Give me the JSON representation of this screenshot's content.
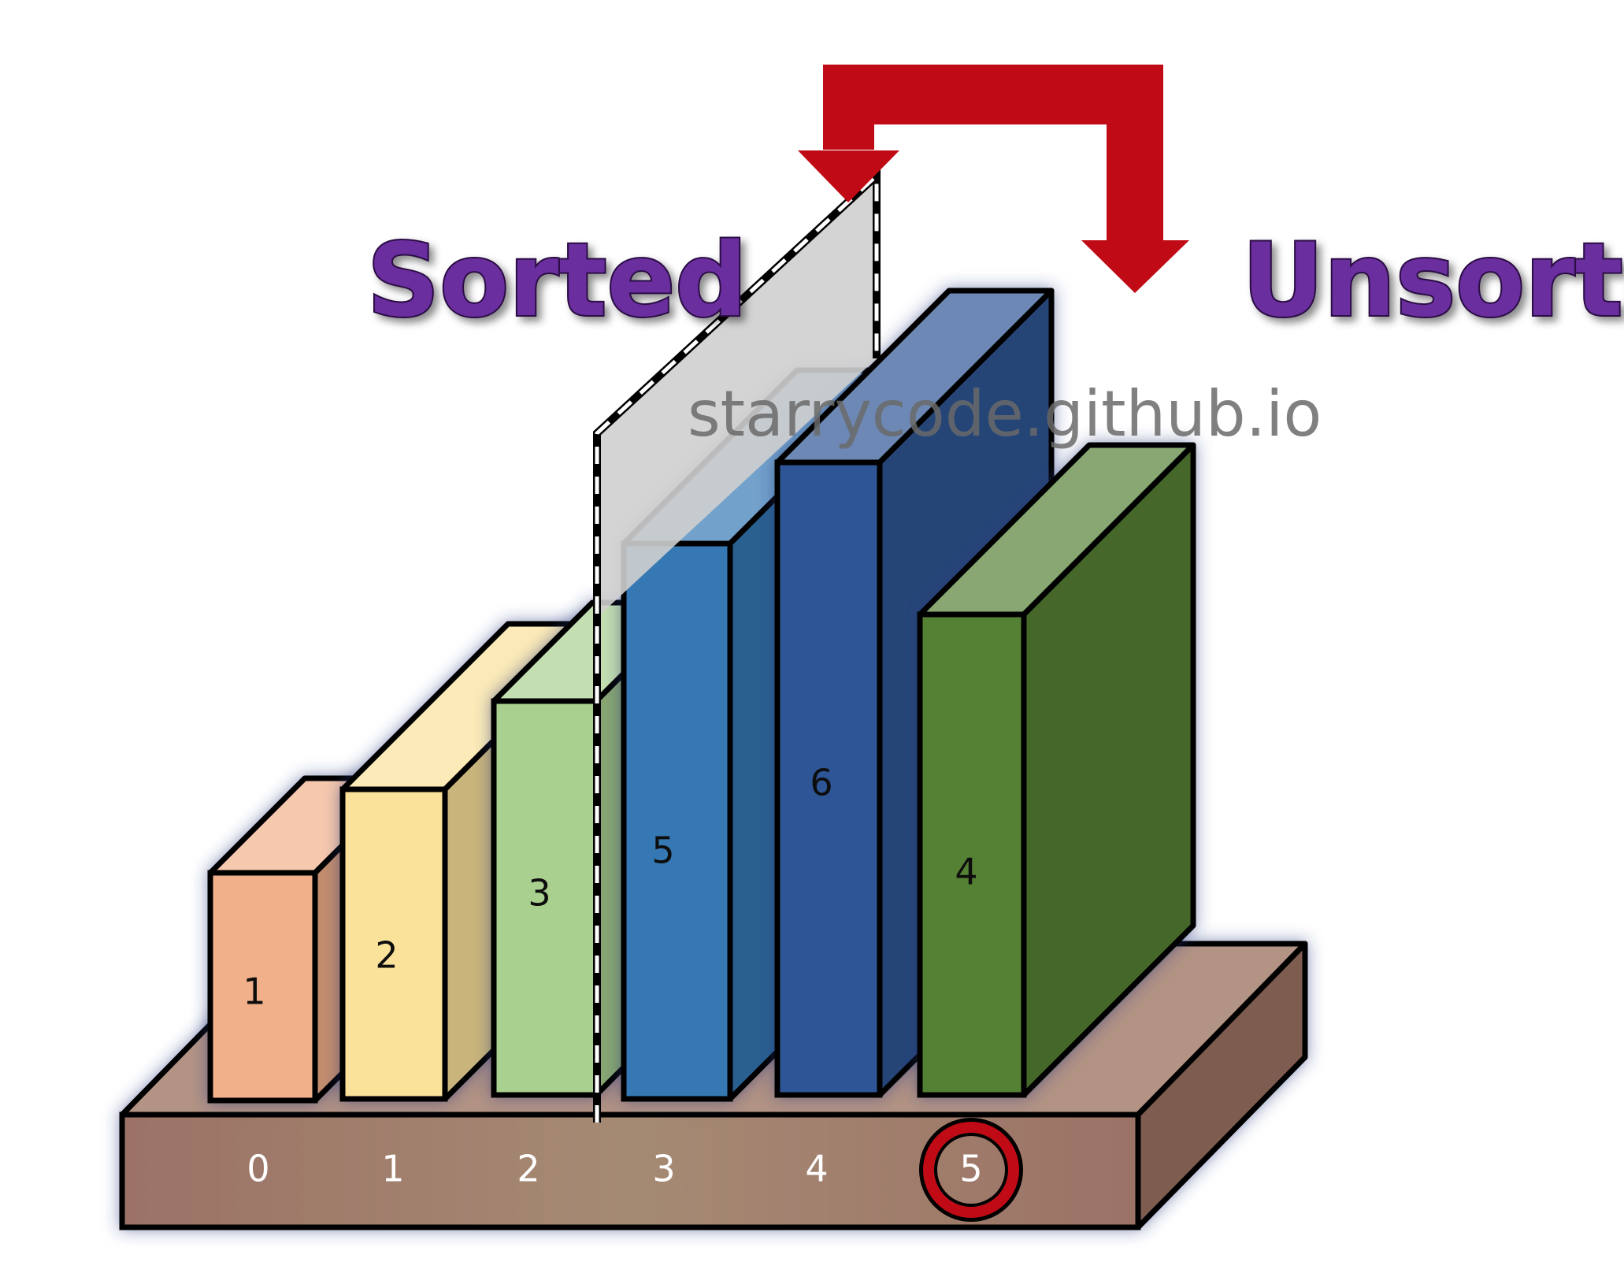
{
  "labels": {
    "sorted": "Sorted",
    "unsorted": "Unsorted",
    "watermark": "starrycode.github.io"
  },
  "blocks": [
    {
      "value": "1",
      "color": "#f2b08a"
    },
    {
      "value": "2",
      "color": "#fbe29a"
    },
    {
      "value": "3",
      "color": "#a9d08e"
    },
    {
      "value": "5",
      "color": "#3578b4"
    },
    {
      "value": "6",
      "color": "#2f5595"
    },
    {
      "value": "4",
      "color": "#558136"
    }
  ],
  "indices": [
    "0",
    "1",
    "2",
    "3",
    "4",
    "5"
  ],
  "highlighted_index": "5",
  "colors": {
    "arrow": "#c00a16",
    "base": "#a57a6c",
    "label_purple": "#6b2d9e",
    "divider_plane": "#cfcfcf"
  }
}
